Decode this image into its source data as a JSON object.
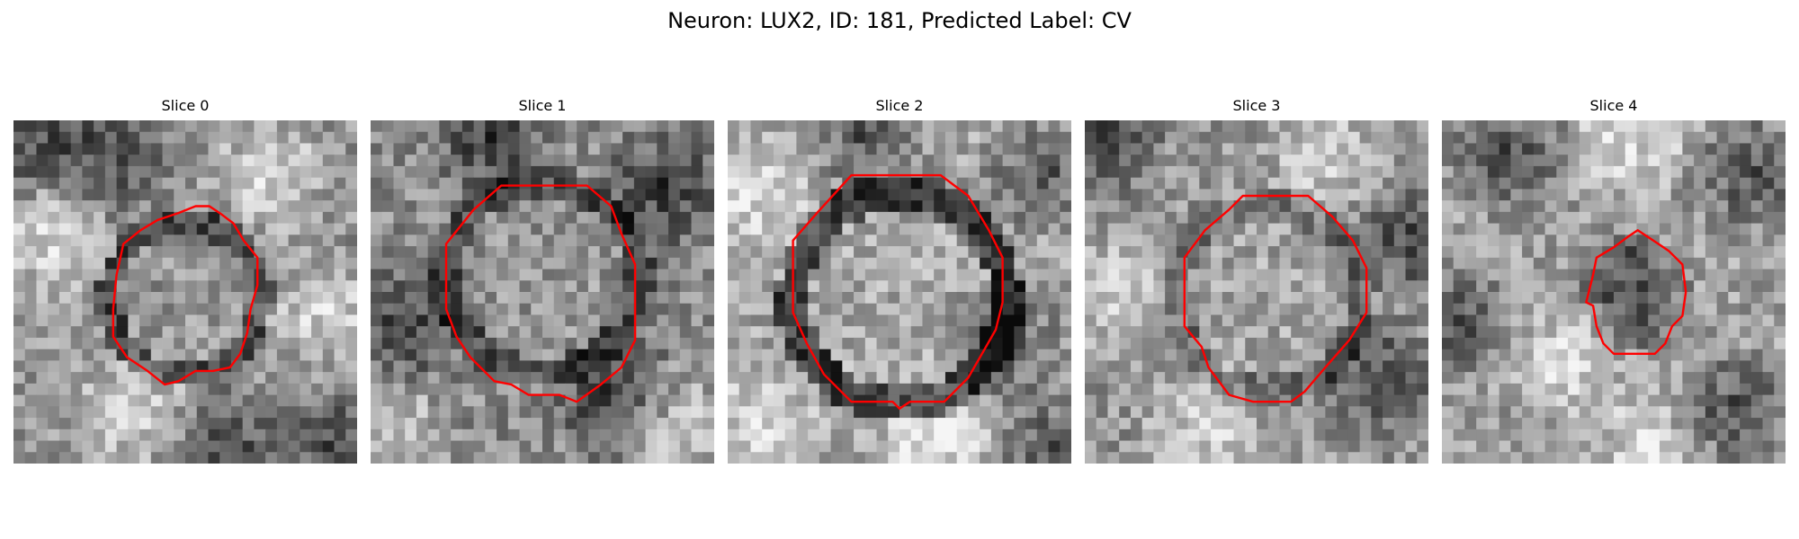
{
  "figure": {
    "title": "Neuron: LUX2, ID: 181, Predicted Label: CV"
  },
  "slices": [
    {
      "title": "Slice 0"
    },
    {
      "title": "Slice 1"
    },
    {
      "title": "Slice 2"
    },
    {
      "title": "Slice 3"
    },
    {
      "title": "Slice 4"
    }
  ],
  "colors": {
    "contour": "#ff0000",
    "background": "#ffffff"
  }
}
